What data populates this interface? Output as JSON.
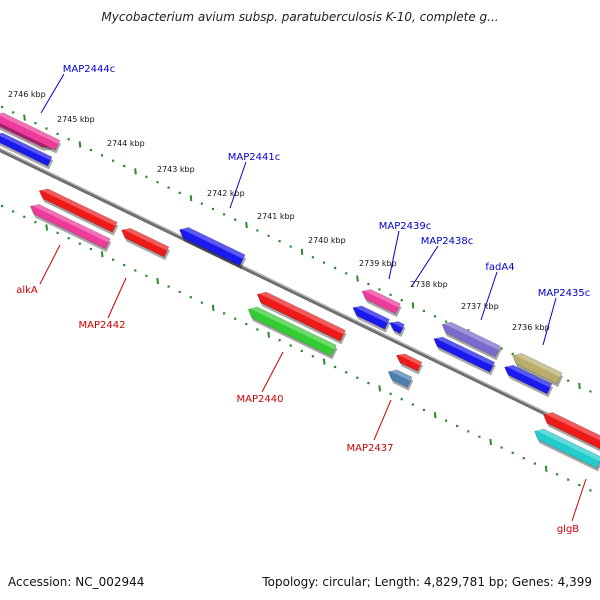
{
  "title": "Mycobacterium avium subsp. paratuberculosis K-10, complete g...",
  "footer": {
    "accession": "Accession: NC_002944",
    "summary": "Topology: circular; Length: 4,829,781 bp; Genes: 4,399"
  },
  "colors": {
    "backbone": "#8a8a8a",
    "ticks": "#2a8a2a",
    "forward_label": "#0000cc",
    "reverse_label": "#cc0000"
  },
  "kbp_labels": [
    "2746 kbp",
    "2745 kbp",
    "2744 kbp",
    "2743 kbp",
    "2742 kbp",
    "2741 kbp",
    "2740 kbp",
    "2739 kbp",
    "2738 kbp",
    "2737 kbp",
    "2736 kbp"
  ],
  "forward_genes": [
    {
      "label": "MAP2444c",
      "color": "#ee3a9a"
    },
    {
      "label": "MAP2441c",
      "color": "#1a1aee"
    },
    {
      "label": "MAP2439c",
      "color": "#ee3a9a"
    },
    {
      "label": "MAP2438c",
      "color": "#1a1aee"
    },
    {
      "label": "fadA4",
      "color": "#7a6acc"
    },
    {
      "label": "MAP2435c",
      "color": "#b8ae6a"
    }
  ],
  "reverse_genes": [
    {
      "label": "alkA",
      "color": "#ee3a9a"
    },
    {
      "label": "MAP2442",
      "color": "#ee1a1a"
    },
    {
      "label": "MAP2440",
      "color": "#33cc33"
    },
    {
      "label": "MAP2437",
      "color": "#ee1a1a"
    },
    {
      "label": "glgB",
      "color": "#22cccc"
    }
  ]
}
